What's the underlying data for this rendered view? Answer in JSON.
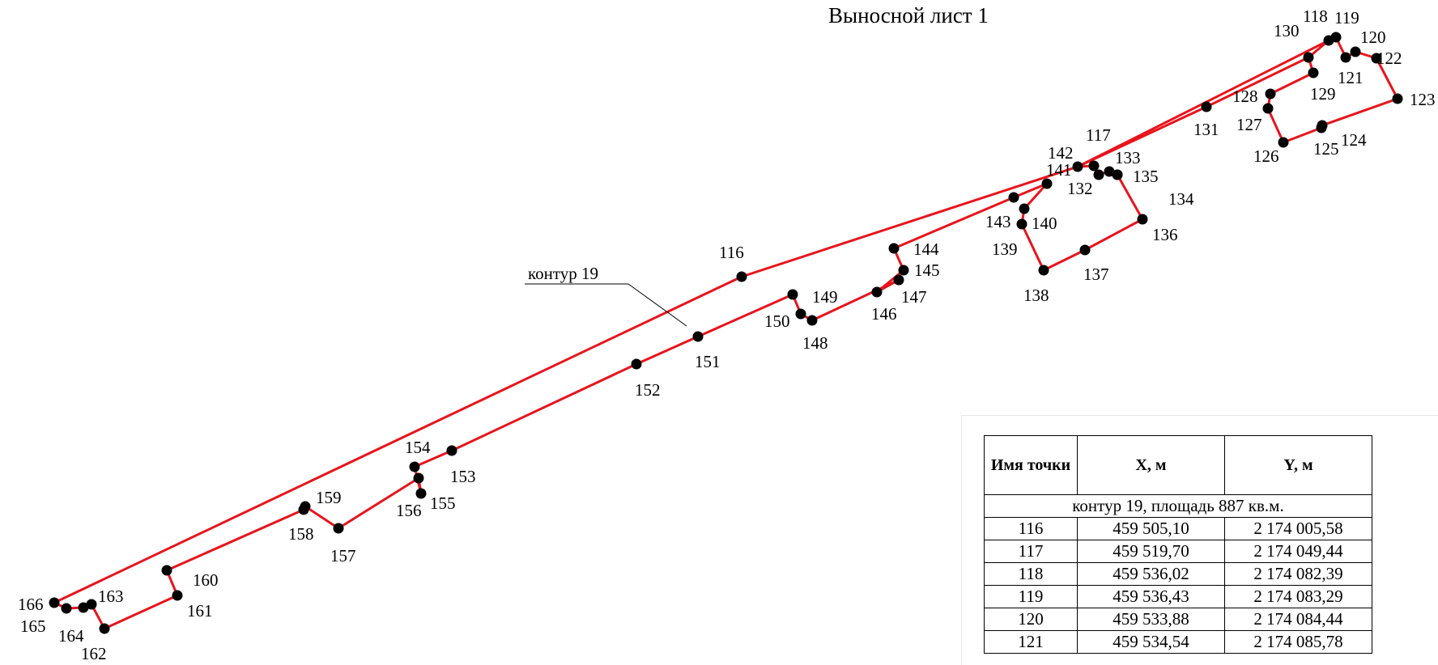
{
  "sheet_title": "Выносной лист 1",
  "contour_label": "контур 19",
  "line_color": "#e8141c",
  "point_color": "#000000",
  "points": [
    {
      "id": "116"
    },
    {
      "id": "117"
    },
    {
      "id": "118"
    },
    {
      "id": "119"
    },
    {
      "id": "120"
    },
    {
      "id": "121"
    },
    {
      "id": "122"
    },
    {
      "id": "123"
    },
    {
      "id": "124"
    },
    {
      "id": "125"
    },
    {
      "id": "126"
    },
    {
      "id": "127"
    },
    {
      "id": "128"
    },
    {
      "id": "129"
    },
    {
      "id": "130"
    },
    {
      "id": "131"
    },
    {
      "id": "132"
    },
    {
      "id": "133"
    },
    {
      "id": "134"
    },
    {
      "id": "135"
    },
    {
      "id": "136"
    },
    {
      "id": "137"
    },
    {
      "id": "138"
    },
    {
      "id": "139"
    },
    {
      "id": "140"
    },
    {
      "id": "141"
    },
    {
      "id": "142"
    },
    {
      "id": "143"
    },
    {
      "id": "144"
    },
    {
      "id": "145"
    },
    {
      "id": "146"
    },
    {
      "id": "147"
    },
    {
      "id": "148"
    },
    {
      "id": "149"
    },
    {
      "id": "150"
    },
    {
      "id": "151"
    },
    {
      "id": "152"
    },
    {
      "id": "153"
    },
    {
      "id": "154"
    },
    {
      "id": "155"
    },
    {
      "id": "156"
    },
    {
      "id": "157"
    },
    {
      "id": "158"
    },
    {
      "id": "159"
    },
    {
      "id": "160"
    },
    {
      "id": "161"
    },
    {
      "id": "162"
    },
    {
      "id": "163"
    },
    {
      "id": "164"
    },
    {
      "id": "165"
    },
    {
      "id": "166"
    }
  ],
  "table": {
    "headers": [
      "Имя точки",
      "X, м",
      "Y, м"
    ],
    "section_row": "контур 19, площадь 887 кв.м.",
    "rows": [
      [
        "116",
        "459 505,10",
        "2 174 005,58"
      ],
      [
        "117",
        "459 519,70",
        "2 174 049,44"
      ],
      [
        "118",
        "459 536,02",
        "2 174 082,39"
      ],
      [
        "119",
        "459 536,43",
        "2 174 083,29"
      ],
      [
        "120",
        "459 533,88",
        "2 174 084,44"
      ],
      [
        "121",
        "459 534,54",
        "2 174 085,78"
      ]
    ]
  }
}
